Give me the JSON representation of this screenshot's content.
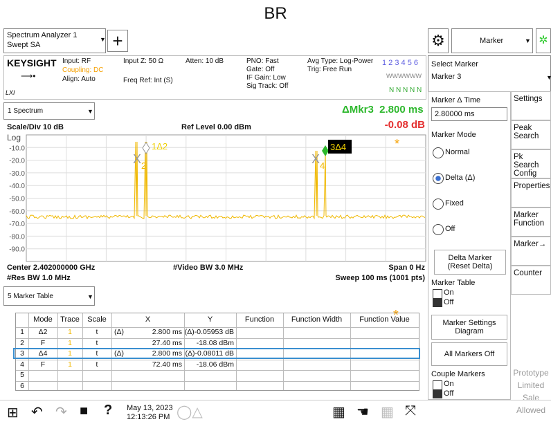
{
  "page_title": "BR",
  "toolbar": {
    "app": [
      "Spectrum Analyzer 1",
      "Swept SA"
    ],
    "menu": "Marker"
  },
  "info": {
    "brand": "KEYSIGHT",
    "input": "Input: RF",
    "coupling": "Coupling: DC",
    "align": "Align: Auto",
    "input_z": "Input Z: 50 Ω",
    "freq_ref": "Freq Ref: Int (S)",
    "atten": "Atten: 10 dB",
    "pno": [
      "PNO: Fast",
      "Gate: Off",
      "IF Gain: Low",
      "Sig Track: Off"
    ],
    "avg": [
      "Avg Type: Log-Power",
      "Trig: Free Run"
    ],
    "traces": "1 2 3 4 5 6",
    "trace_types": "WWWWWW",
    "detectors": "N N N N N"
  },
  "spectrum": {
    "window": "1 Spectrum",
    "delta_label": "ΔMkr3",
    "delta_x": "2.800 ms",
    "delta_y": "-0.08 dB",
    "scale": "Scale/Div 10 dB",
    "ref": "Ref Level 0.00 dBm",
    "log": "Log",
    "y_labels": [
      "-10.0",
      "-20.0",
      "-30.0",
      "-40.0",
      "-50.0",
      "-60.0",
      "-70.0",
      "-80.0",
      "-90.0"
    ],
    "markers": {
      "m1": "1Δ2",
      "m2": "2",
      "m3": "3Δ4",
      "m4": "4"
    },
    "footer": {
      "center": "Center 2.402000000 GHz",
      "vbw": "#Video BW 3.0 MHz",
      "span": "Span 0 Hz",
      "rbw": "#Res BW 1.0 MHz",
      "sweep": "Sweep 100 ms (1001 pts)"
    }
  },
  "table": {
    "window": "5 Marker Table",
    "columns": [
      "Mode",
      "Trace",
      "Scale",
      "X",
      "Y",
      "Function",
      "Function Width",
      "Function Value"
    ],
    "rows": [
      {
        "n": "1",
        "mode": "Δ2",
        "trace": "1",
        "scale": "t",
        "x_prefix": "(Δ)",
        "x": "2.800 ms",
        "y": "(Δ)-0.05953 dB"
      },
      {
        "n": "2",
        "mode": "F",
        "trace": "1",
        "scale": "t",
        "x": "27.40 ms",
        "y": "-18.08 dBm"
      },
      {
        "n": "3",
        "mode": "Δ4",
        "trace": "1",
        "scale": "t",
        "x_prefix": "(Δ)",
        "x": "2.800 ms",
        "y": "(Δ)-0.08011 dB"
      },
      {
        "n": "4",
        "mode": "F",
        "trace": "1",
        "scale": "t",
        "x": "72.40 ms",
        "y": "-18.06 dBm"
      },
      {
        "n": "5"
      },
      {
        "n": "6"
      }
    ]
  },
  "panel": {
    "select_marker": "Select Marker",
    "marker": "Marker 3",
    "delta_time": "Marker Δ Time",
    "delta_time_value": "2.80000 ms",
    "mode": "Marker Mode",
    "modes": [
      "Normal",
      "Delta (Δ)",
      "Fixed",
      "Off"
    ],
    "delta_marker": [
      "Delta Marker",
      "(Reset Delta)"
    ],
    "marker_table": "Marker Table",
    "on": "On",
    "off": "Off",
    "settings_diagram": [
      "Marker Settings",
      "Diagram"
    ],
    "all_off": "All Markers Off",
    "couple": "Couple Markers"
  },
  "side": [
    "Settings",
    "Peak Search",
    "Pk Search Config",
    "Properties",
    "Marker Function",
    "Marker→",
    "Counter"
  ],
  "side_note": [
    "Prototype",
    "Limited",
    "Sale",
    "Allowed"
  ],
  "taskbar": {
    "date": "May 13, 2023",
    "time": "12:13:26 PM"
  }
}
